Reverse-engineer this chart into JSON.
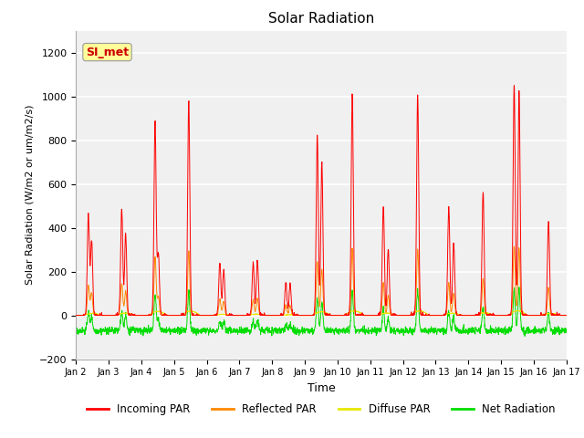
{
  "title": "Solar Radiation",
  "xlabel": "Time",
  "ylabel": "Solar Radiation (W/m2 or um/m2/s)",
  "ylim": [
    -200,
    1300
  ],
  "yticks": [
    -200,
    0,
    200,
    400,
    600,
    800,
    1000,
    1200
  ],
  "legend_labels": [
    "Incoming PAR",
    "Reflected PAR",
    "Diffuse PAR",
    "Net Radiation"
  ],
  "colors": {
    "incoming": "#ff0000",
    "reflected": "#ff8800",
    "diffuse": "#e8e800",
    "net": "#00dd00"
  },
  "annotation_text": "SI_met",
  "annotation_color": "#cc0000",
  "annotation_bg": "#ffff99",
  "plot_bg": "#f0f0f0",
  "grid_color": "#ffffff"
}
